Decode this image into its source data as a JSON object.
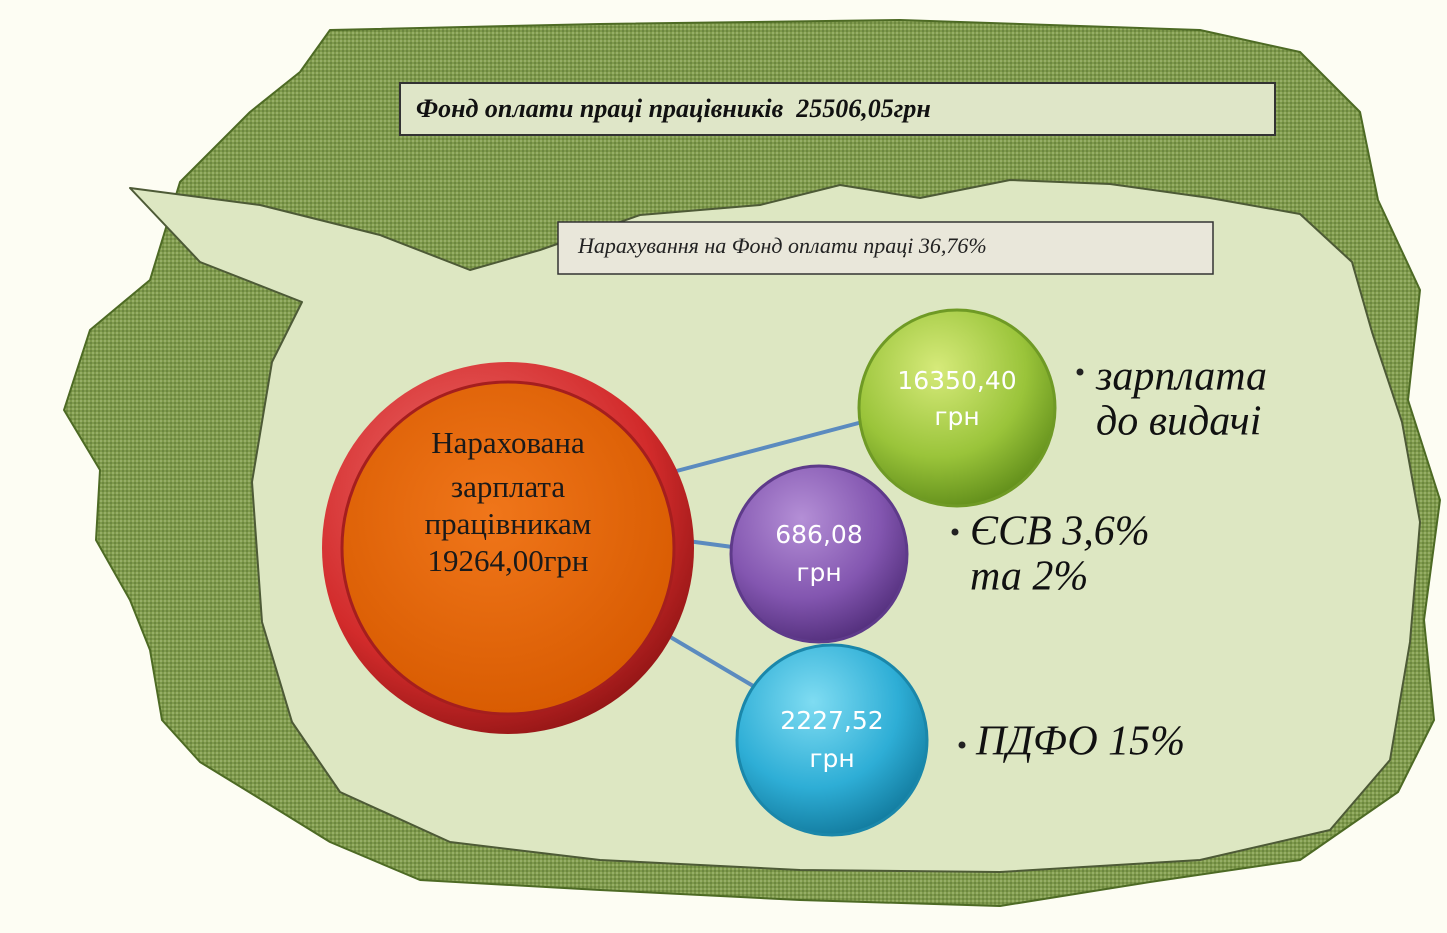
{
  "header": {
    "title": "Фонд оплати праці працівників  25506,05грн"
  },
  "subheader": {
    "title": "Нарахування на Фонд оплати праці 36,76%"
  },
  "center": {
    "lines": [
      "Нарахована",
      "зарплата",
      "працівникам",
      "19264,00грн"
    ]
  },
  "nodes": [
    {
      "value": "16350,40",
      "unit": "грн",
      "label_lines": [
        "зарплата",
        "до видачі"
      ]
    },
    {
      "value": "686,08",
      "unit": "грн",
      "label_lines": [
        "ЄСВ 3,6%",
        "та 2%"
      ]
    },
    {
      "value": "2227,52",
      "unit": "грн",
      "label_lines": [
        "ПДФО 15%"
      ]
    }
  ]
}
